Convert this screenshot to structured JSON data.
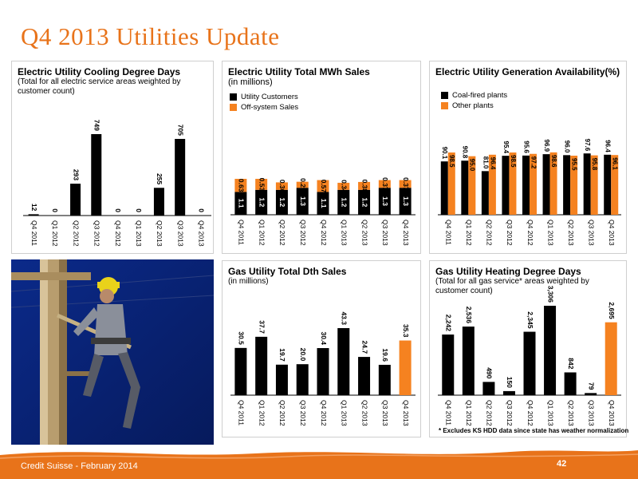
{
  "page": {
    "title": "Q4 2013 Utilities Update",
    "footer": "Credit Suisse - February 2014",
    "page_number": "42",
    "footnote": "* Excludes KS HDD data since state has weather normalization",
    "colors": {
      "accent": "#e8731a",
      "bar_dark": "#000000",
      "bar_orange": "#f58220"
    }
  },
  "panels": {
    "cdd": {
      "title": "Electric Utility Cooling Degree Days",
      "subtitle": "(Total for all electric service areas weighted by customer count)"
    },
    "mwh": {
      "title": "Electric Utility Total MWh Sales",
      "subtitle": "(in millions)"
    },
    "gen": {
      "title": "Electric Utility Generation Availability(%)"
    },
    "dth": {
      "title": "Gas Utility Total Dth Sales",
      "subtitle": "(in millions)"
    },
    "hdd": {
      "title": "Gas Utility Heating Degree Days",
      "subtitle": "(Total for all gas service* areas weighted by customer count)"
    }
  },
  "chart_data": [
    {
      "id": "cdd",
      "type": "bar",
      "title": "Electric Utility Cooling Degree Days",
      "categories": [
        "Q4 2011",
        "Q1 2012",
        "Q2 2012",
        "Q3 2012",
        "Q4 2012",
        "Q1 2013",
        "Q2 2013",
        "Q3 2013",
        "Q4 2013"
      ],
      "values": [
        12,
        0,
        293,
        749,
        0,
        0,
        255,
        705,
        0
      ],
      "labels": [
        "12",
        "0",
        "293",
        "749",
        "0",
        "0",
        "255",
        "705",
        "0"
      ],
      "ylim": [
        0,
        749
      ]
    },
    {
      "id": "mwh",
      "type": "bar",
      "stacked": true,
      "title": "Electric Utility Total MWh Sales",
      "categories": [
        "Q4 2011",
        "Q1 2012",
        "Q2 2012",
        "Q3 2012",
        "Q4 2012",
        "Q1 2013",
        "Q2 2013",
        "Q3 2013",
        "Q4 2013"
      ],
      "series": [
        {
          "name": "Utility Customers",
          "values": [
            1.1,
            1.2,
            1.2,
            1.3,
            1.1,
            1.2,
            1.2,
            1.3,
            1.3
          ],
          "labels": [
            "1.1",
            "1.2",
            "1.2",
            "1.3",
            "1.1",
            "1.2",
            "1.2",
            "1.3",
            "1.3"
          ]
        },
        {
          "name": "Off-system Sales",
          "values": [
            0.63,
            0.53,
            0.36,
            0.29,
            0.57,
            0.34,
            0.38,
            0.37,
            0.37
          ],
          "labels": [
            "0.63",
            "0.53",
            "0.36",
            "0.29",
            "0.57",
            "0.34",
            "0.38",
            "0.37",
            "0.37"
          ]
        }
      ],
      "legend": "top-left"
    },
    {
      "id": "gen",
      "type": "bar",
      "title": "Electric Utility Generation Availability(%)",
      "categories": [
        "Q4 2011",
        "Q1 2012",
        "Q2 2012",
        "Q3 2012",
        "Q4 2012",
        "Q1 2013",
        "Q2 2013",
        "Q3 2013",
        "Q4 2013"
      ],
      "series": [
        {
          "name": "Coal-fired plants",
          "values": [
            90.1,
            90.8,
            81.0,
            95.4,
            95.6,
            96.9,
            96.0,
            97.6,
            96.4
          ],
          "labels": [
            "90.1",
            "90.8",
            "81.0",
            "95.4",
            "95.6",
            "96.9",
            "96.0",
            "97.6",
            "96.4"
          ]
        },
        {
          "name": "Other plants",
          "values": [
            98.5,
            95.0,
            96.4,
            98.5,
            97.2,
            98.6,
            95.5,
            95.8,
            96.1
          ],
          "labels": [
            "98.5",
            "95.0",
            "96.4",
            "98.5",
            "97.2",
            "98.6",
            "95.5",
            "95.8",
            "96.1"
          ]
        }
      ],
      "legend": "top-left"
    },
    {
      "id": "dth",
      "type": "bar",
      "title": "Gas Utility Total Dth Sales",
      "categories": [
        "Q4 2011",
        "Q1 2012",
        "Q2 2012",
        "Q3 2012",
        "Q4 2012",
        "Q1 2013",
        "Q2 2013",
        "Q3 2013",
        "Q4 2013"
      ],
      "values": [
        30.5,
        37.7,
        19.7,
        20.0,
        30.4,
        43.3,
        24.7,
        19.6,
        35.3
      ],
      "labels": [
        "30.5",
        "37.7",
        "19.7",
        "20.0",
        "30.4",
        "43.3",
        "24.7",
        "19.6",
        "35.3"
      ],
      "highlight_last": true
    },
    {
      "id": "hdd",
      "type": "bar",
      "title": "Gas Utility Heating Degree Days",
      "categories": [
        "Q4 2011",
        "Q1 2012",
        "Q2 2012",
        "Q3 2012",
        "Q4 2012",
        "Q1 2013",
        "Q2 2013",
        "Q3 2013",
        "Q4 2013"
      ],
      "values": [
        2242,
        2536,
        490,
        150,
        2345,
        3306,
        842,
        79,
        2695
      ],
      "labels": [
        "2,242",
        "2,536",
        "490",
        "150",
        "2,345",
        "3,306",
        "842",
        "79",
        "2,695"
      ],
      "highlight_last": true
    }
  ]
}
